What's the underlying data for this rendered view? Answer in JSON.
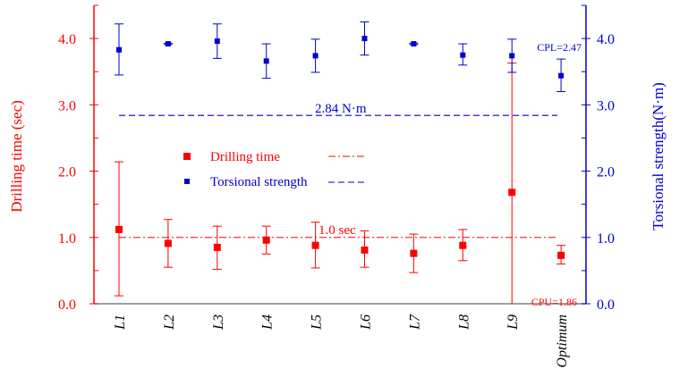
{
  "chart_data": {
    "type": "scatter",
    "title": "",
    "categories": [
      "L1",
      "L2",
      "L3",
      "L4",
      "L5",
      "L6",
      "L7",
      "L8",
      "L9",
      "Optimum"
    ],
    "ylabel": "Drilling time (sec)",
    "y2label": "Torsional  strength(N·m)",
    "ylim": [
      0,
      4.5
    ],
    "y2lim": [
      0,
      4.5
    ],
    "yticks": [
      "0.0",
      "1.0",
      "2.0",
      "3.0",
      "4.0"
    ],
    "y2ticks": [
      "0.0",
      "1.0",
      "2.0",
      "3.0",
      "4.0"
    ],
    "series": [
      {
        "name": "Drilling time",
        "axis": "left",
        "color": "#ff0000",
        "values": [
          1.12,
          0.91,
          0.85,
          0.96,
          0.88,
          0.81,
          0.76,
          0.88,
          1.68,
          0.73
        ],
        "err_high": [
          2.14,
          1.27,
          1.17,
          1.17,
          1.23,
          1.1,
          1.05,
          1.12,
          3.63,
          0.88
        ],
        "err_low": [
          0.12,
          0.55,
          0.52,
          0.75,
          0.54,
          0.55,
          0.47,
          0.65,
          0.0,
          0.6
        ]
      },
      {
        "name": "Torsional strength",
        "axis": "right",
        "color": "#0000cc",
        "values": [
          3.83,
          3.92,
          3.96,
          3.66,
          3.74,
          4.0,
          3.92,
          3.75,
          3.74,
          3.44
        ],
        "err_high": [
          4.22,
          3.93,
          4.22,
          3.92,
          3.99,
          4.25,
          3.93,
          3.92,
          3.99,
          3.69
        ],
        "err_low": [
          3.45,
          3.91,
          3.7,
          3.4,
          3.49,
          3.75,
          3.91,
          3.6,
          3.49,
          3.2
        ]
      }
    ],
    "reference_lines": [
      {
        "label": "1.0 sec",
        "value": 1.0,
        "axis": "left",
        "style": "dash-dot",
        "color": "#ff0000"
      },
      {
        "label": "2.84 N·m",
        "value": 2.84,
        "axis": "right",
        "style": "dashed",
        "color": "#0000cc"
      }
    ],
    "annotations": [
      {
        "text": "CPL=2.47",
        "color": "#0000cc"
      },
      {
        "text": "CPU=1.86",
        "color": "#ff0000"
      }
    ],
    "legend": {
      "placement": "center-left",
      "entries": [
        {
          "label": "Drilling time",
          "color": "#ff0000",
          "line": "dash-dot"
        },
        {
          "label": "Torsional strength",
          "color": "#0000cc",
          "line": "dashed"
        }
      ]
    },
    "grid": false
  }
}
